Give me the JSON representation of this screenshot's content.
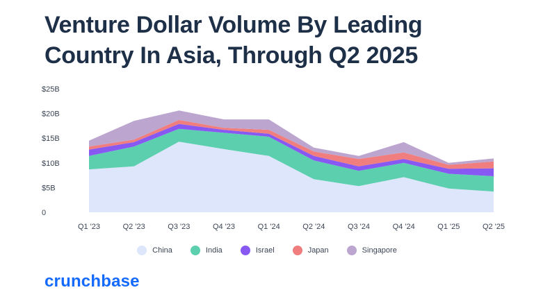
{
  "title": "Venture Dollar Volume By Leading Country In Asia, Through Q2 2025",
  "logo": "crunchbase",
  "chart_data": {
    "type": "area",
    "stacked": true,
    "categories": [
      "Q1 '23",
      "Q2 '23",
      "Q3 '23",
      "Q4 '23",
      "Q1 '24",
      "Q2 '24",
      "Q3 '24",
      "Q4 '24",
      "Q1 '25",
      "Q2 '25"
    ],
    "ylim": [
      0,
      25
    ],
    "yticks": [
      {
        "value": 0,
        "label": "0"
      },
      {
        "value": 5,
        "label": "$5B"
      },
      {
        "value": 10,
        "label": "$10B"
      },
      {
        "value": 15,
        "label": "$15B"
      },
      {
        "value": 20,
        "label": "$20B"
      },
      {
        "value": 25,
        "label": "$25B"
      }
    ],
    "grid": false,
    "legend_position": "bottom",
    "series": [
      {
        "name": "China",
        "color": "#dde6fb",
        "values": [
          8.7,
          9.3,
          14.3,
          12.8,
          11.4,
          6.7,
          5.3,
          7.1,
          4.8,
          4.2
        ]
      },
      {
        "name": "India",
        "color": "#5ccfae",
        "values": [
          2.7,
          4.0,
          2.6,
          3.3,
          3.9,
          3.8,
          3.1,
          2.9,
          3.0,
          3.1
        ]
      },
      {
        "name": "Israel",
        "color": "#8759f2",
        "values": [
          1.3,
          0.9,
          1.0,
          0.6,
          0.6,
          0.9,
          0.9,
          0.8,
          1.0,
          1.6
        ]
      },
      {
        "name": "Japan",
        "color": "#f07e7e",
        "values": [
          0.6,
          0.5,
          0.8,
          0.4,
          0.8,
          0.9,
          1.5,
          1.3,
          0.8,
          1.4
        ]
      },
      {
        "name": "Singapore",
        "color": "#bca6cf",
        "values": [
          1.2,
          3.8,
          1.9,
          1.7,
          2.1,
          0.8,
          0.6,
          2.1,
          0.4,
          0.6
        ]
      }
    ]
  }
}
